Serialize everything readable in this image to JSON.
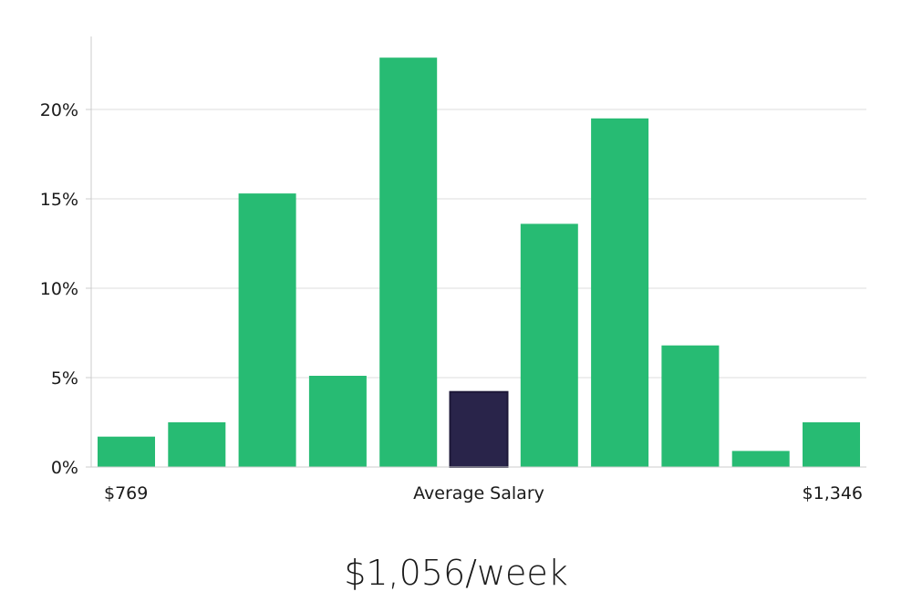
{
  "colors": {
    "bar": "#27BB73",
    "highlight_bar": "#29244A",
    "grid": "#dddddd",
    "axis": "#cccccc"
  },
  "chart_data": {
    "type": "bar",
    "values": [
      1.7,
      2.5,
      15.3,
      5.1,
      22.9,
      4.2,
      13.6,
      19.5,
      6.8,
      0.9,
      2.5
    ],
    "highlight_index": 5,
    "ylim": [
      0,
      24
    ],
    "yticks": [
      0,
      5,
      10,
      15,
      20
    ],
    "ytick_labels": [
      "0%",
      "5%",
      "10%",
      "15%",
      "20%"
    ],
    "x_min_label": "$769",
    "x_center_label": "Average Salary",
    "x_max_label": "$1,346",
    "grid": true
  },
  "salary_display": "$1,056/week"
}
